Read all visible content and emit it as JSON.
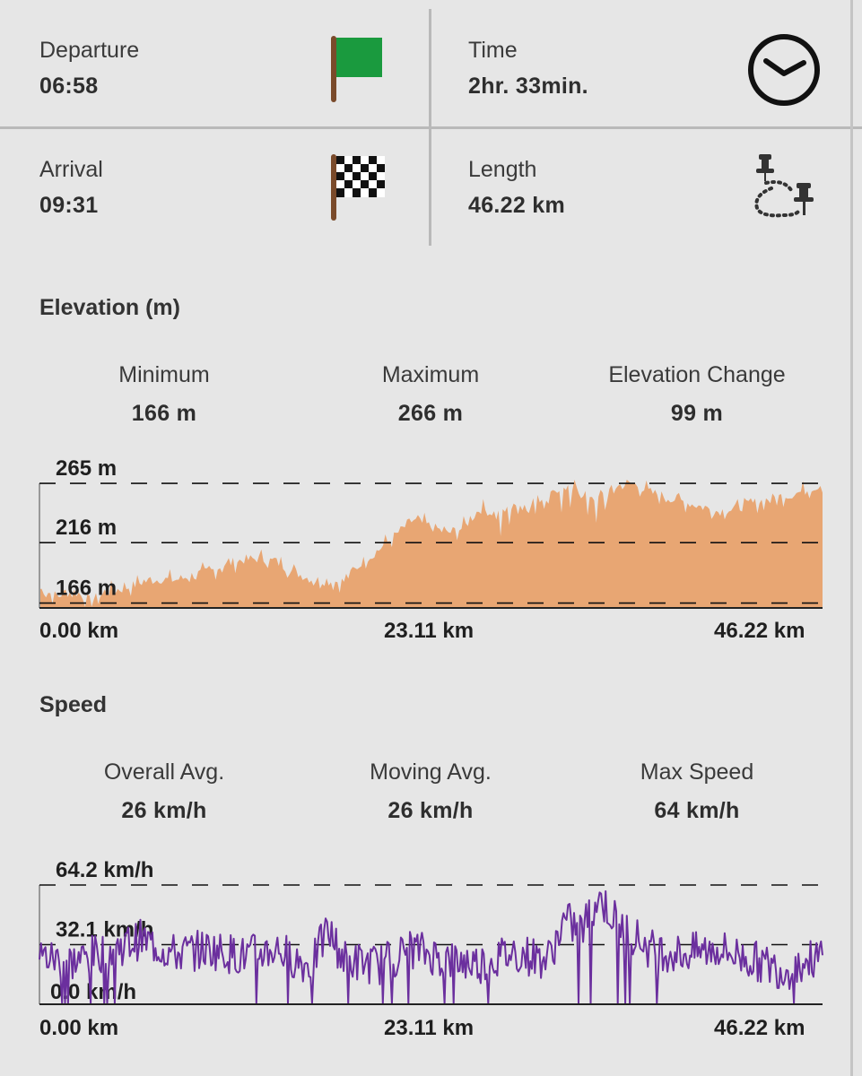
{
  "trip": {
    "departure_label": "Departure",
    "departure_value": "06:58",
    "time_label": "Time",
    "time_value": "2hr. 33min.",
    "arrival_label": "Arrival",
    "arrival_value": "09:31",
    "length_label": "Length",
    "length_value": "46.22 km"
  },
  "icons": {
    "departure": "green-flag-icon",
    "time": "clock-icon",
    "arrival": "checkered-flag-icon",
    "length": "route-pins-icon"
  },
  "colors": {
    "flag_green": "#1a9a3e",
    "elevation_fill": "#e8a673",
    "speed_line": "#6b2f9e",
    "background": "#e6e6e6"
  },
  "elevation": {
    "title": "Elevation (m)",
    "min_label": "Minimum",
    "min_value": "166 m",
    "max_label": "Maximum",
    "max_value": "266 m",
    "change_label": "Elevation Change",
    "change_value": "99 m",
    "y_ticks": [
      "265 m",
      "216 m",
      "166 m"
    ],
    "x_ticks": [
      "0.00 km",
      "23.11 km",
      "46.22 km"
    ]
  },
  "speed": {
    "title": "Speed",
    "overall_label": "Overall Avg.",
    "overall_value": "26 km/h",
    "moving_label": "Moving Avg.",
    "moving_value": "26 km/h",
    "max_label": "Max Speed",
    "max_value": "64 km/h",
    "y_ticks": [
      "64.2 km/h",
      "32.1 km/h",
      "0.0 km/h"
    ],
    "x_ticks": [
      "0.00 km",
      "23.11 km",
      "46.22 km"
    ]
  },
  "chart_data": [
    {
      "type": "area",
      "xlabel": "",
      "ylabel": "",
      "x": [
        0,
        1,
        2,
        3,
        4,
        5,
        6,
        7,
        8,
        9,
        10,
        11,
        12,
        13,
        14,
        15,
        16,
        17,
        18,
        19,
        20,
        21,
        22,
        23,
        24,
        25,
        26,
        27,
        28,
        29,
        30,
        31,
        32,
        33,
        34,
        35,
        36,
        37,
        38,
        39,
        40,
        41,
        42,
        43,
        44,
        45,
        46.22
      ],
      "y": [
        178,
        172,
        176,
        168,
        175,
        178,
        183,
        186,
        185,
        189,
        192,
        198,
        202,
        203,
        200,
        192,
        186,
        184,
        184,
        200,
        210,
        222,
        235,
        230,
        224,
        228,
        244,
        240,
        245,
        250,
        255,
        262,
        258,
        253,
        262,
        265,
        258,
        254,
        250,
        246,
        242,
        244,
        248,
        252,
        255,
        258,
        265
      ],
      "xlim": [
        0,
        46.22
      ],
      "ylim": [
        162,
        268
      ],
      "y_ticks": [
        166,
        216,
        265
      ]
    },
    {
      "type": "line",
      "xlabel": "",
      "ylabel": "",
      "x": [
        0,
        2,
        4,
        6,
        8,
        10,
        12,
        14,
        16,
        17,
        18,
        20,
        22,
        23.11,
        24,
        26,
        28,
        30,
        31,
        32,
        33,
        34,
        35,
        36,
        38,
        40,
        42,
        44,
        45,
        46.22
      ],
      "y": [
        26,
        23,
        29,
        35,
        27,
        30,
        26,
        30,
        20,
        40,
        24,
        21,
        30,
        27,
        24,
        22,
        28,
        24,
        45,
        40,
        58,
        45,
        38,
        30,
        27,
        30,
        24,
        18,
        22,
        26
      ],
      "xlim": [
        0,
        46.22
      ],
      "ylim": [
        0,
        64.2
      ],
      "y_ticks": [
        0.0,
        32.1,
        64.2
      ]
    }
  ]
}
